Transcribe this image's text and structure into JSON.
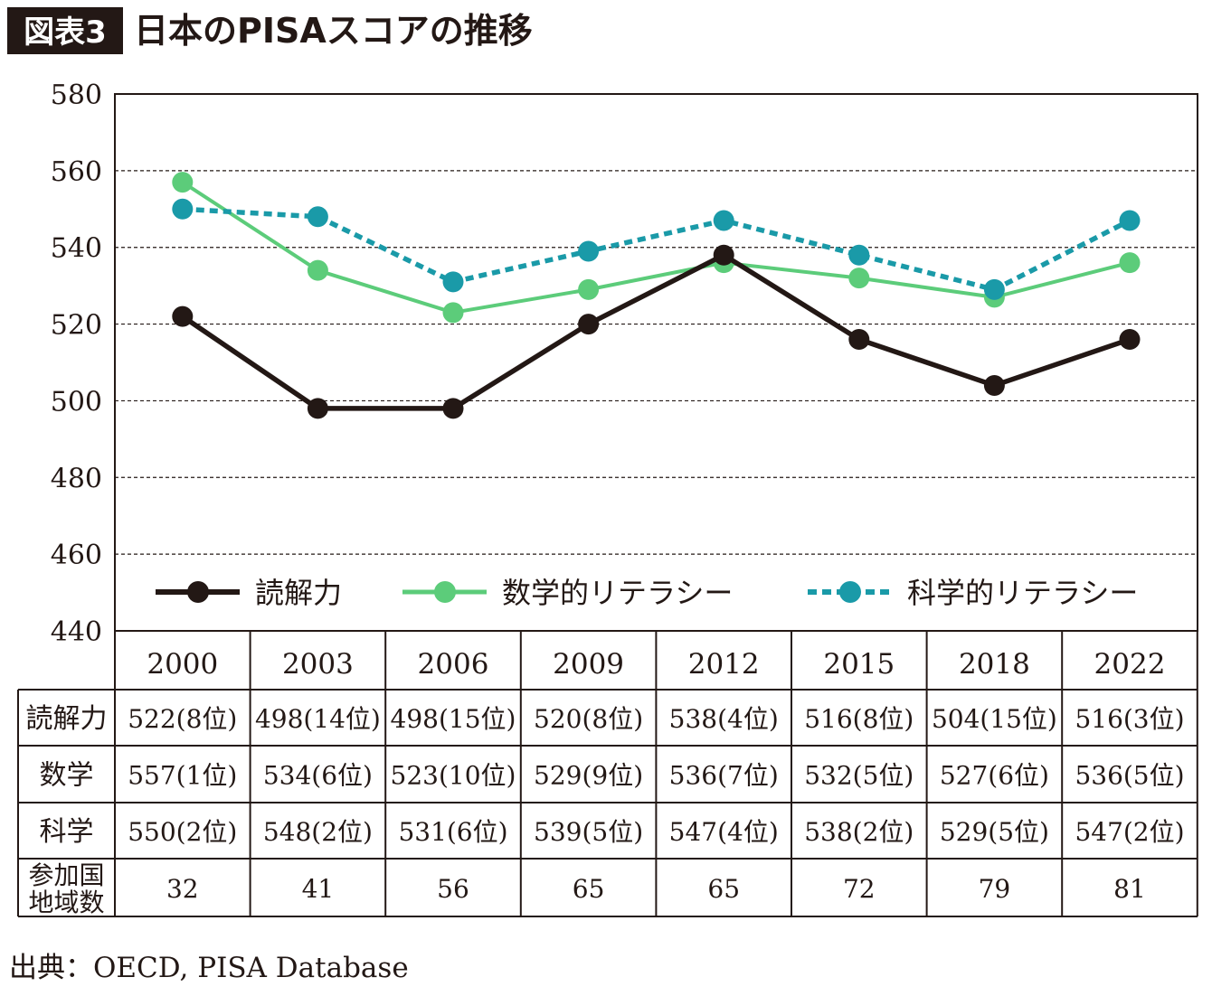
{
  "header": {
    "badge": "図表3",
    "title": "日本のPISAスコアの推移"
  },
  "colors": {
    "reading": "#231815",
    "math": "#5ccc7a",
    "science": "#1a9aa8",
    "badge_bg": "#231815",
    "grid": "#231815"
  },
  "chart_data": {
    "type": "line",
    "categories": [
      "2000",
      "2003",
      "2006",
      "2009",
      "2012",
      "2015",
      "2018",
      "2022"
    ],
    "yticks": [
      "440",
      "460",
      "480",
      "500",
      "520",
      "540",
      "560",
      "580"
    ],
    "ylim": [
      440,
      580
    ],
    "grid": "horizontal-dashed",
    "legend_position": "bottom-inside",
    "series": [
      {
        "key": "reading",
        "name": "読解力",
        "style": "solid",
        "values": [
          522,
          498,
          498,
          520,
          538,
          516,
          504,
          516
        ]
      },
      {
        "key": "math",
        "name": "数学的リテラシー",
        "style": "solid",
        "values": [
          557,
          534,
          523,
          529,
          536,
          532,
          527,
          536
        ]
      },
      {
        "key": "science",
        "name": "科学的リテラシー",
        "style": "dotted",
        "values": [
          550,
          548,
          531,
          539,
          547,
          538,
          529,
          547
        ]
      }
    ]
  },
  "table": {
    "rows": [
      {
        "label": "読解力",
        "cells": [
          "522(8位)",
          "498(14位)",
          "498(15位)",
          "520(8位)",
          "538(4位)",
          "516(8位)",
          "504(15位)",
          "516(3位)"
        ]
      },
      {
        "label": "数学",
        "cells": [
          "557(1位)",
          "534(6位)",
          "523(10位)",
          "529(9位)",
          "536(7位)",
          "532(5位)",
          "527(6位)",
          "536(5位)"
        ]
      },
      {
        "label": "科学",
        "cells": [
          "550(2位)",
          "548(2位)",
          "531(6位)",
          "539(5位)",
          "547(4位)",
          "538(2位)",
          "529(5位)",
          "547(2位)"
        ]
      },
      {
        "label_lines": [
          "参加国",
          "地域数"
        ],
        "cells": [
          "32",
          "41",
          "56",
          "65",
          "65",
          "72",
          "79",
          "81"
        ]
      }
    ]
  },
  "source": "出典：OECD, PISA Database"
}
